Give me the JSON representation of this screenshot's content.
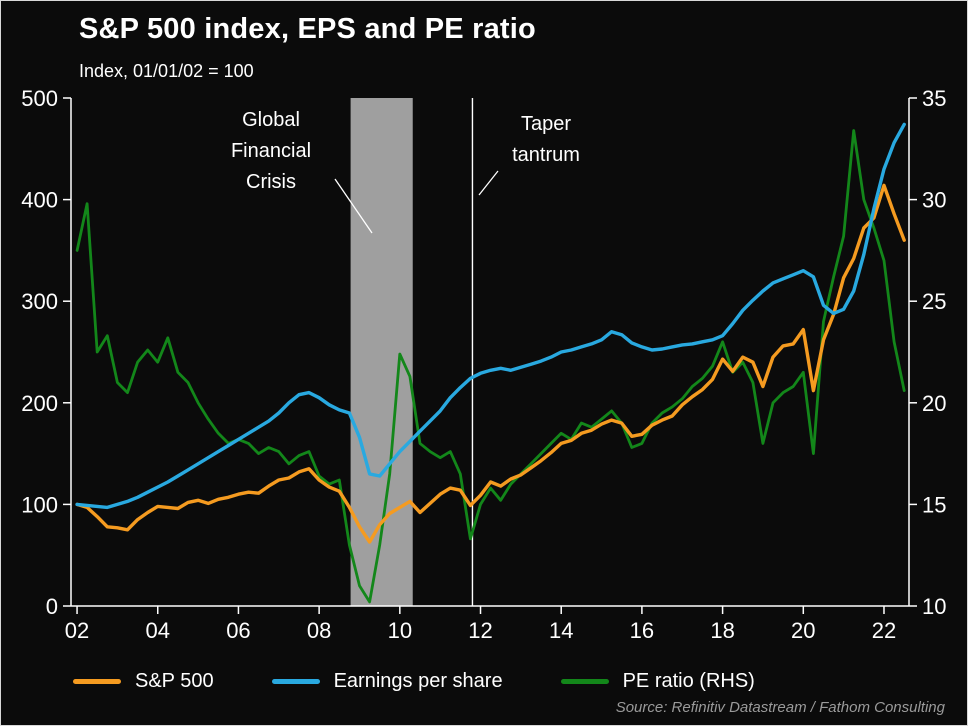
{
  "header": {
    "title": "S&P 500 index, EPS and PE ratio",
    "subtitle": "Index, 01/01/02 = 100"
  },
  "source": "Source: Refinitiv Datastream / Fathom Consulting",
  "legend": [
    {
      "label": "S&P 500",
      "color": "#f59b20"
    },
    {
      "label": "Earnings per share",
      "color": "#29a9e0"
    },
    {
      "label": "PE ratio (RHS)",
      "color": "#13871a"
    }
  ],
  "annotations": {
    "gfc_label": "Global\nFinancial\nCrisis",
    "taper_label": "Taper\ntantrum"
  },
  "chart_data": {
    "type": "line",
    "title": "S&P 500 index, EPS and PE ratio",
    "subtitle": "Index, 01/01/02 = 100",
    "x_range": [
      2001.85,
      2022.62
    ],
    "left_axis": {
      "min": 0,
      "max": 500,
      "ticks": [
        0,
        100,
        200,
        300,
        400,
        500
      ]
    },
    "right_axis": {
      "min": 10,
      "max": 35,
      "ticks": [
        10,
        15,
        20,
        25,
        30,
        35
      ]
    },
    "x_axis": {
      "tick_values": [
        2002,
        2004,
        2006,
        2008,
        2010,
        2012,
        2014,
        2016,
        2018,
        2020,
        2022
      ],
      "tick_labels": [
        "02",
        "04",
        "06",
        "08",
        "10",
        "12",
        "14",
        "16",
        "18",
        "20",
        "22"
      ]
    },
    "shaded_region": {
      "x0": 2008.78,
      "x1": 2010.32,
      "color": "#9f9f9f",
      "label": "Global Financial Crisis"
    },
    "vline": {
      "x": 2011.8,
      "color": "#ffffff",
      "label": "Taper tantrum"
    },
    "colors": {
      "background": "#0b0b0b",
      "axis": "#ffffff"
    },
    "x": [
      2002,
      2002.25,
      2002.5,
      2002.75,
      2003,
      2003.25,
      2003.5,
      2003.75,
      2004,
      2004.25,
      2004.5,
      2004.75,
      2005,
      2005.25,
      2005.5,
      2005.75,
      2006,
      2006.25,
      2006.5,
      2006.75,
      2007,
      2007.25,
      2007.5,
      2007.75,
      2008,
      2008.25,
      2008.5,
      2008.75,
      2009,
      2009.25,
      2009.5,
      2009.75,
      2010,
      2010.25,
      2010.5,
      2010.75,
      2011,
      2011.25,
      2011.5,
      2011.75,
      2012,
      2012.25,
      2012.5,
      2012.75,
      2013,
      2013.25,
      2013.5,
      2013.75,
      2014,
      2014.25,
      2014.5,
      2014.75,
      2015,
      2015.25,
      2015.5,
      2015.75,
      2016,
      2016.25,
      2016.5,
      2016.75,
      2017,
      2017.25,
      2017.5,
      2017.75,
      2018,
      2018.25,
      2018.5,
      2018.75,
      2019,
      2019.25,
      2019.5,
      2019.75,
      2020,
      2020.25,
      2020.5,
      2020.75,
      2021,
      2021.25,
      2021.5,
      2021.75,
      2022,
      2022.25,
      2022.5
    ],
    "series": [
      {
        "name": "PE ratio (RHS)",
        "axis": "right",
        "color": "#13871a",
        "stroke_width": 2.8,
        "values": [
          27.5,
          29.8,
          22.5,
          23.3,
          21,
          20.5,
          22,
          22.6,
          22,
          23.2,
          21.5,
          21,
          20,
          19.2,
          18.5,
          18,
          18.2,
          18,
          17.5,
          17.8,
          17.6,
          17,
          17.4,
          17.6,
          16.4,
          16,
          16.2,
          13,
          11,
          10.2,
          13,
          16.5,
          22.4,
          21.3,
          18,
          17.6,
          17.3,
          17.6,
          16.5,
          13.3,
          15,
          15.8,
          15.2,
          16,
          16.5,
          17,
          17.5,
          18,
          18.5,
          18.2,
          19,
          18.8,
          19.2,
          19.6,
          19,
          17.8,
          18,
          19,
          19.5,
          19.8,
          20.2,
          20.8,
          21.2,
          21.8,
          23,
          21.5,
          22,
          21,
          18,
          20,
          20.5,
          20.8,
          21.5,
          17.5,
          24,
          26.2,
          28.2,
          33.4,
          30,
          28.6,
          27,
          23,
          20.6
        ]
      },
      {
        "name": "S&P 500",
        "axis": "left",
        "color": "#f59b20",
        "stroke_width": 3.4,
        "values": [
          100,
          97,
          88,
          78,
          77,
          75,
          85,
          92,
          98,
          97,
          96,
          102,
          104,
          101,
          105,
          107,
          110,
          112,
          111,
          118,
          124,
          126,
          132,
          135,
          124,
          117,
          113,
          97,
          78,
          63,
          80,
          91,
          97,
          103,
          92,
          101,
          110,
          116,
          114,
          99,
          109,
          122,
          118,
          125,
          129,
          136,
          143,
          151,
          160,
          163,
          170,
          173,
          179,
          183,
          180,
          167,
          169,
          178,
          183,
          187,
          198,
          206,
          213,
          223,
          243,
          231,
          245,
          240,
          216,
          245,
          256,
          258,
          272,
          212,
          262,
          287,
          323,
          342,
          372,
          382,
          414,
          386,
          360
        ]
      },
      {
        "name": "Earnings per share",
        "axis": "left",
        "color": "#29a9e0",
        "stroke_width": 3.4,
        "values": [
          100,
          99,
          98,
          97,
          100,
          103,
          107,
          112,
          117,
          122,
          128,
          134,
          140,
          146,
          152,
          158,
          164,
          170,
          176,
          182,
          190,
          200,
          208,
          210,
          205,
          198,
          193,
          190,
          166,
          130,
          128,
          140,
          152,
          162,
          172,
          182,
          192,
          205,
          215,
          224,
          229,
          232,
          234,
          232,
          235,
          238,
          241,
          245,
          250,
          252,
          255,
          258,
          262,
          270,
          267,
          259,
          255,
          252,
          253,
          255,
          257,
          258,
          260,
          262,
          266,
          278,
          291,
          301,
          310,
          318,
          322,
          326,
          330,
          324,
          296,
          288,
          292,
          310,
          346,
          391,
          430,
          456,
          474
        ]
      }
    ]
  }
}
